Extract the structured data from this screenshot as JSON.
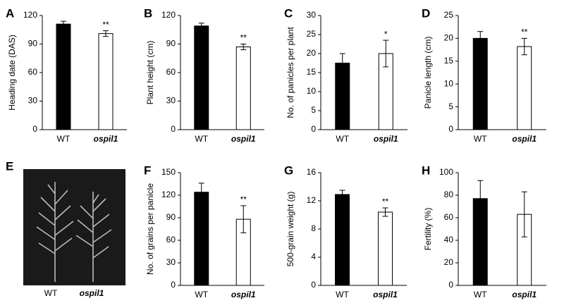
{
  "chart_data": [
    {
      "type": "bar",
      "panel": "A",
      "ylabel": "Heading date (DAS)",
      "categories": [
        "WT",
        "ospil1"
      ],
      "values": [
        111,
        101
      ],
      "errors": [
        3,
        3
      ],
      "colors": [
        "#000000",
        "#ffffff"
      ],
      "significance": [
        null,
        "**"
      ],
      "ylim": [
        0,
        120
      ],
      "yticks": [
        0,
        30,
        60,
        90,
        120
      ]
    },
    {
      "type": "bar",
      "panel": "B",
      "ylabel": "Plant height (cm)",
      "categories": [
        "WT",
        "ospil1"
      ],
      "values": [
        109,
        87
      ],
      "errors": [
        3,
        3
      ],
      "colors": [
        "#000000",
        "#ffffff"
      ],
      "significance": [
        null,
        "**"
      ],
      "ylim": [
        0,
        120
      ],
      "yticks": [
        0,
        30,
        60,
        90,
        120
      ]
    },
    {
      "type": "bar",
      "panel": "C",
      "ylabel": "No. of panicles per plant",
      "categories": [
        "WT",
        "ospil1"
      ],
      "values": [
        17.5,
        20
      ],
      "errors": [
        2.5,
        3.5
      ],
      "colors": [
        "#000000",
        "#ffffff"
      ],
      "significance": [
        null,
        "*"
      ],
      "ylim": [
        0,
        30
      ],
      "yticks": [
        0,
        5,
        10,
        15,
        20,
        25,
        30
      ]
    },
    {
      "type": "bar",
      "panel": "D",
      "ylabel": "Panicle length (cm)",
      "categories": [
        "WT",
        "ospil1"
      ],
      "values": [
        20,
        18.2
      ],
      "errors": [
        1.5,
        1.8
      ],
      "colors": [
        "#000000",
        "#ffffff"
      ],
      "significance": [
        null,
        "**"
      ],
      "ylim": [
        0,
        25
      ],
      "yticks": [
        0,
        5,
        10,
        15,
        20,
        25
      ]
    },
    {
      "type": "bar",
      "panel": "F",
      "ylabel": "No. of grains per panicle",
      "categories": [
        "WT",
        "ospil1"
      ],
      "values": [
        124,
        88
      ],
      "errors": [
        12,
        18
      ],
      "colors": [
        "#000000",
        "#ffffff"
      ],
      "significance": [
        null,
        "**"
      ],
      "ylim": [
        0,
        150
      ],
      "yticks": [
        0,
        30,
        60,
        90,
        120,
        150
      ]
    },
    {
      "type": "bar",
      "panel": "G",
      "ylabel": "500-grain weight (g)",
      "categories": [
        "WT",
        "ospil1"
      ],
      "values": [
        12.9,
        10.4
      ],
      "errors": [
        0.6,
        0.6
      ],
      "colors": [
        "#000000",
        "#ffffff"
      ],
      "significance": [
        null,
        "**"
      ],
      "ylim": [
        0,
        16
      ],
      "yticks": [
        0,
        4,
        8,
        12,
        16
      ]
    },
    {
      "type": "bar",
      "panel": "H",
      "ylabel": "Fertility (%)",
      "categories": [
        "WT",
        "ospil1"
      ],
      "values": [
        77,
        63
      ],
      "errors": [
        16,
        20
      ],
      "colors": [
        "#000000",
        "#ffffff"
      ],
      "ylim": [
        0,
        100
      ],
      "yticks": [
        0,
        20,
        40,
        60,
        80,
        100
      ]
    }
  ],
  "photo_panel": {
    "panel": "E",
    "captions": [
      "WT",
      "ospil1"
    ]
  }
}
